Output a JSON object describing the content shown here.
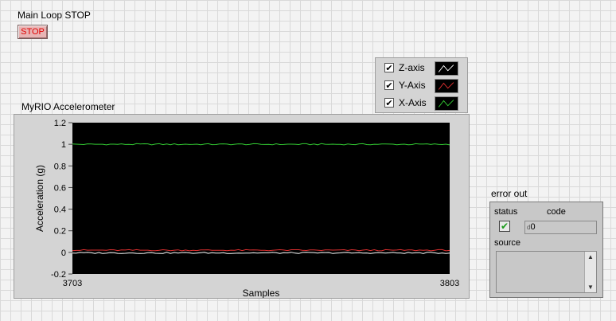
{
  "main_loop": {
    "label": "Main Loop STOP",
    "button_label": "STOP"
  },
  "legend": {
    "items": [
      {
        "name": "Z-axis",
        "checked": true,
        "color": "#ffffff",
        "check_glyph": "✔"
      },
      {
        "name": "Y-Axis",
        "checked": true,
        "color": "#e03030",
        "check_glyph": "✔"
      },
      {
        "name": "X-Axis",
        "checked": true,
        "color": "#33cc33",
        "check_glyph": "✔"
      }
    ]
  },
  "graph": {
    "title": "MyRIO Accelerometer"
  },
  "chart_data": {
    "type": "line",
    "title": "MyRIO Accelerometer",
    "xlabel": "Samples",
    "ylabel": "Acceleration (g)",
    "xlim": [
      3703,
      3803
    ],
    "ylim": [
      -0.2,
      1.2
    ],
    "x_ticks": [
      "3703",
      "3803"
    ],
    "y_ticks": [
      "1.2",
      "1",
      "0.8",
      "0.6",
      "0.4",
      "0.2",
      "0",
      "-0.2"
    ],
    "y_tick_values": [
      1.2,
      1,
      0.8,
      0.6,
      0.4,
      0.2,
      0,
      -0.2
    ],
    "plot_background": "#000000",
    "grid": false,
    "series": [
      {
        "name": "X-Axis",
        "color": "#33cc33",
        "level": 1.0
      },
      {
        "name": "Y-Axis",
        "color": "#e03030",
        "level": 0.02
      },
      {
        "name": "Z-axis",
        "color": "#ffffff",
        "level": -0.005
      }
    ]
  },
  "error_out": {
    "title": "error out",
    "status_label": "status",
    "code_label": "code",
    "code_value": "0",
    "code_prefix": "d",
    "source_label": "source",
    "source_value": "",
    "status_glyph": "✔",
    "status_color": "#1a9a1a",
    "scroll_up_glyph": "▲",
    "scroll_down_glyph": "▼"
  }
}
